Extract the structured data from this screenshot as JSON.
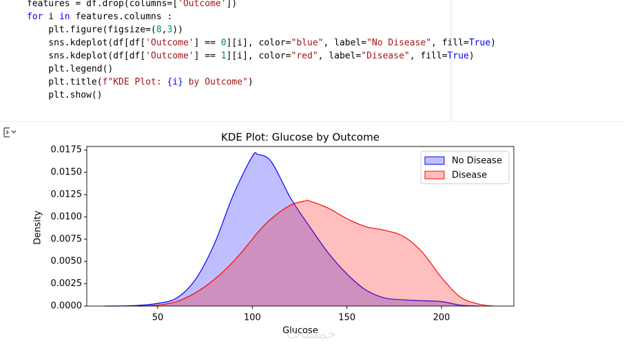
{
  "code": {
    "lines": [
      [
        {
          "text": "features = df.drop(columns=[",
          "color": "#000000"
        },
        {
          "text": "'Outcome'",
          "color": "#a31515"
        },
        {
          "text": "])",
          "color": "#000000"
        }
      ],
      [
        {
          "text": "for",
          "color": "#0000ff"
        },
        {
          "text": " i ",
          "color": "#000000"
        },
        {
          "text": "in",
          "color": "#0000ff"
        },
        {
          "text": " features.columns :",
          "color": "#000000"
        }
      ],
      [
        {
          "text": "    plt.figure(figsize=(",
          "color": "#000000"
        },
        {
          "text": "8",
          "color": "#098658"
        },
        {
          "text": ",",
          "color": "#000000"
        },
        {
          "text": "3",
          "color": "#098658"
        },
        {
          "text": "))",
          "color": "#000000"
        }
      ],
      [
        {
          "text": "    sns.kdeplot(df[df[",
          "color": "#000000"
        },
        {
          "text": "'Outcome'",
          "color": "#a31515"
        },
        {
          "text": "] == ",
          "color": "#000000"
        },
        {
          "text": "0",
          "color": "#098658"
        },
        {
          "text": "][i], color=",
          "color": "#000000"
        },
        {
          "text": "\"blue\"",
          "color": "#a31515"
        },
        {
          "text": ", label=",
          "color": "#000000"
        },
        {
          "text": "\"No Disease\"",
          "color": "#a31515"
        },
        {
          "text": ", fill=",
          "color": "#000000"
        },
        {
          "text": "True",
          "color": "#0000ff"
        },
        {
          "text": ")",
          "color": "#000000"
        }
      ],
      [
        {
          "text": "    sns.kdeplot(df[df[",
          "color": "#000000"
        },
        {
          "text": "'Outcome'",
          "color": "#a31515"
        },
        {
          "text": "] == ",
          "color": "#000000"
        },
        {
          "text": "1",
          "color": "#098658"
        },
        {
          "text": "][i], color=",
          "color": "#000000"
        },
        {
          "text": "\"red\"",
          "color": "#a31515"
        },
        {
          "text": ", label=",
          "color": "#000000"
        },
        {
          "text": "\"Disease\"",
          "color": "#a31515"
        },
        {
          "text": ", fill=",
          "color": "#000000"
        },
        {
          "text": "True",
          "color": "#0000ff"
        },
        {
          "text": ")",
          "color": "#000000"
        }
      ],
      [
        {
          "text": "    plt.legend()",
          "color": "#000000"
        }
      ],
      [
        {
          "text": "    plt.title(",
          "color": "#000000"
        },
        {
          "text": "f\"KDE Plot: ",
          "color": "#a31515"
        },
        {
          "text": "{i}",
          "color": "#0000ff"
        },
        {
          "text": " by Outcome\"",
          "color": "#a31515"
        },
        {
          "text": ")",
          "color": "#000000"
        }
      ],
      [
        {
          "text": "    plt.show()",
          "color": "#000000"
        }
      ]
    ]
  },
  "watermark": "خمسات",
  "chart_data": {
    "type": "area",
    "title": "KDE Plot: Glucose by Outcome",
    "x_label": "Glucose",
    "y_label": "Density",
    "x": [
      22,
      30,
      40,
      50,
      60,
      70,
      80,
      90,
      100,
      103,
      110,
      120,
      128,
      130,
      140,
      150,
      160,
      170,
      180,
      190,
      200,
      210,
      220,
      228
    ],
    "series": [
      {
        "name": "No Disease",
        "color": "#0000ff",
        "fill": "#bfbfff",
        "values": [
          0,
          1e-05,
          8e-05,
          0.0003,
          0.0009,
          0.003,
          0.007,
          0.0125,
          0.0168,
          0.017,
          0.0162,
          0.0122,
          0.0096,
          0.009,
          0.006,
          0.0036,
          0.0018,
          0.0009,
          0.0007,
          0.0006,
          0.0005,
          0.0001,
          0,
          null
        ]
      },
      {
        "name": "Disease",
        "color": "#ff0000",
        "fill": "#ffbfbf",
        "values": [
          null,
          null,
          0,
          0.0001,
          0.0005,
          0.0015,
          0.003,
          0.005,
          0.0075,
          0.0083,
          0.0098,
          0.0113,
          0.0118,
          0.0118,
          0.011,
          0.0098,
          0.0089,
          0.0085,
          0.0078,
          0.006,
          0.0032,
          0.001,
          0.0002,
          0
        ]
      }
    ],
    "xlim": [
      12.5,
      238.2
    ],
    "xticks": [
      50,
      100,
      150,
      200
    ],
    "ylim": [
      0,
      0.0179
    ],
    "yticks": [
      {
        "value": 0,
        "label": "0.0000"
      },
      0.0025,
      {
        "value": 0.005,
        "label": "0.0050"
      },
      0.0075,
      {
        "value": 0.01,
        "label": "0.0100"
      },
      0.0125,
      {
        "value": 0.015,
        "label": "0.0150"
      },
      0.0175
    ],
    "legend": "upper right",
    "grid": false
  }
}
